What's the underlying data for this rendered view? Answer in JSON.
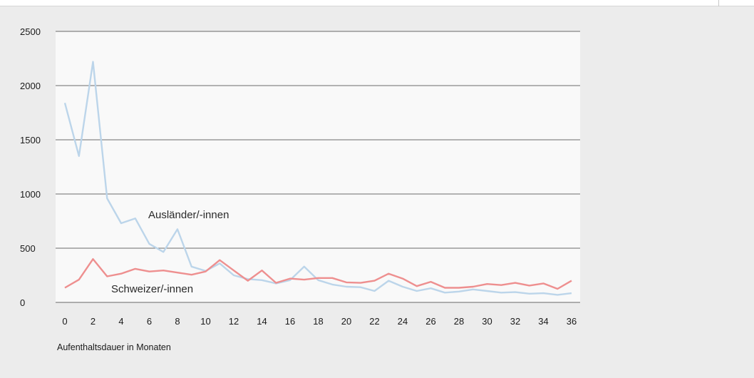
{
  "chart_data": {
    "type": "line",
    "xlabel": "Aufenthaltsdauer in Monaten",
    "ylabel": "",
    "ylim": [
      0,
      2500
    ],
    "xlim": [
      0,
      36
    ],
    "y_ticks": [
      0,
      500,
      1000,
      1500,
      2000,
      2500
    ],
    "x_ticks": [
      0,
      2,
      4,
      6,
      8,
      10,
      12,
      14,
      16,
      18,
      20,
      22,
      24,
      26,
      28,
      30,
      32,
      34,
      36
    ],
    "grid": "horizontal",
    "x": [
      0,
      1,
      2,
      3,
      4,
      5,
      6,
      7,
      8,
      9,
      10,
      11,
      12,
      13,
      14,
      15,
      16,
      17,
      18,
      19,
      20,
      21,
      22,
      23,
      24,
      25,
      26,
      27,
      28,
      29,
      30,
      31,
      32,
      33,
      34,
      35,
      36
    ],
    "series": [
      {
        "name": "Ausländer/-innen",
        "color": "#bcd5ea",
        "values": [
          1840,
          1350,
          2220,
          960,
          730,
          775,
          540,
          465,
          675,
          330,
          290,
          360,
          250,
          215,
          205,
          175,
          205,
          330,
          205,
          165,
          145,
          140,
          105,
          200,
          145,
          105,
          130,
          90,
          100,
          120,
          105,
          90,
          95,
          80,
          85,
          70,
          85
        ]
      },
      {
        "name": "Schweizer/-innen",
        "color": "#ee8f8f",
        "values": [
          135,
          210,
          400,
          240,
          265,
          310,
          285,
          295,
          275,
          255,
          285,
          390,
          295,
          200,
          295,
          180,
          220,
          210,
          225,
          225,
          185,
          180,
          200,
          265,
          220,
          150,
          190,
          135,
          135,
          145,
          170,
          160,
          180,
          155,
          175,
          125,
          200
        ]
      }
    ]
  }
}
